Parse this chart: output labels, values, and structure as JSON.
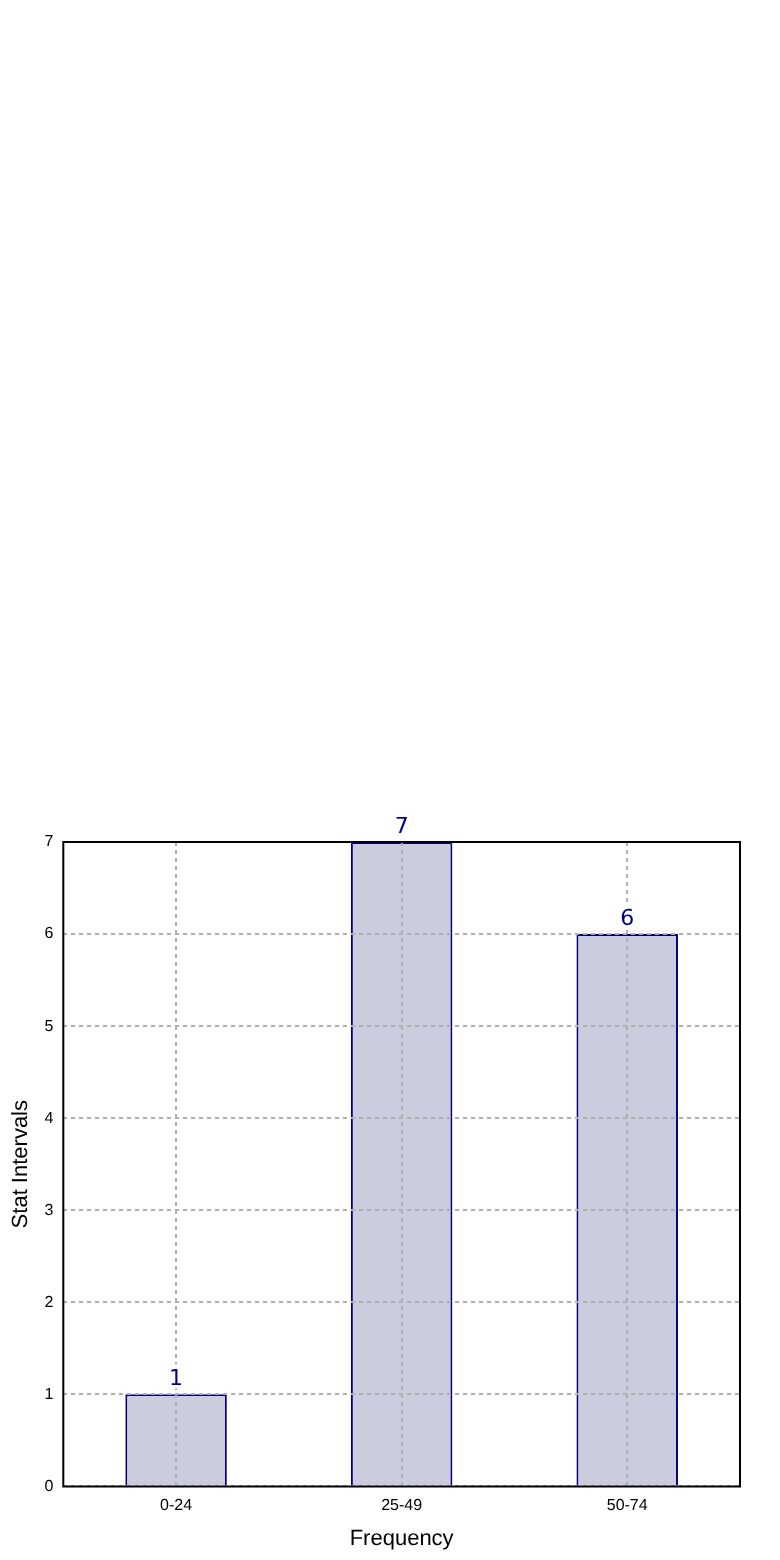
{
  "chart_data": {
    "type": "bar",
    "xlabel": "Frequency",
    "ylabel": "Stat Intervals",
    "categories": [
      "0-24",
      "25-49",
      "50-74"
    ],
    "values": [
      1,
      7,
      6
    ],
    "color": "#ccccdf",
    "ylim": [
      0,
      7
    ],
    "yticks": [
      0,
      1,
      2,
      3,
      4,
      5,
      6,
      7
    ],
    "grid": true,
    "data_labels": true
  }
}
